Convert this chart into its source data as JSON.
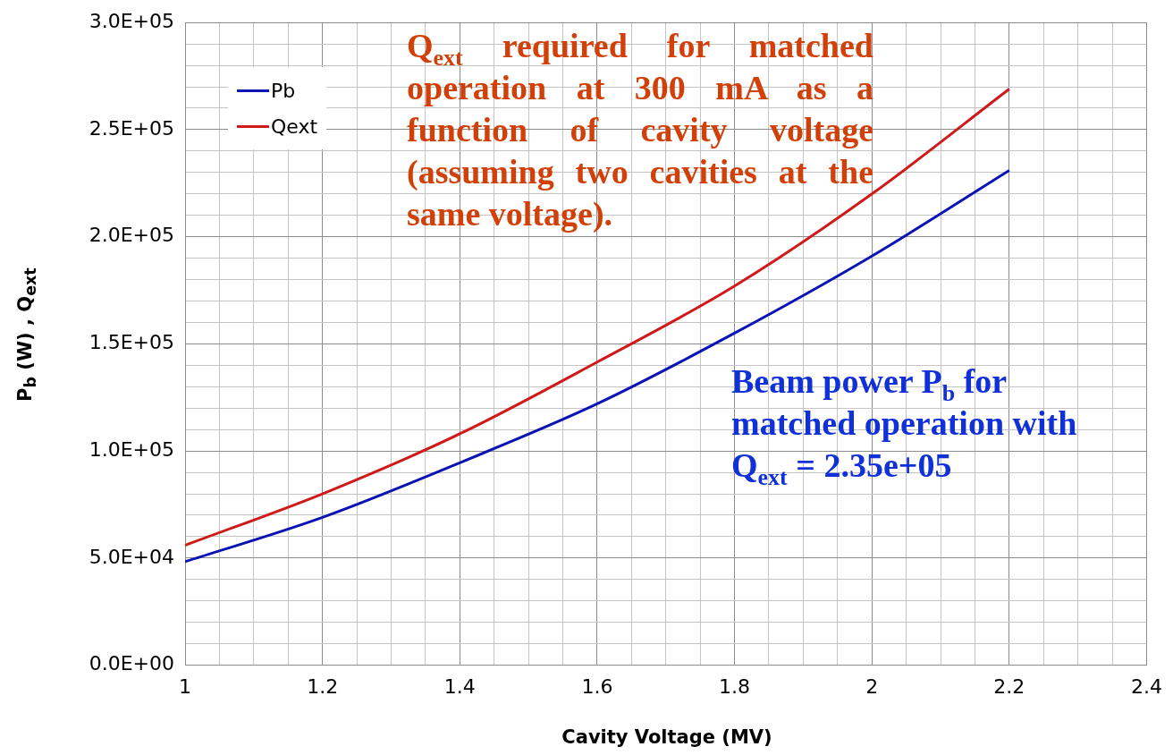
{
  "chart_data": {
    "type": "line",
    "xlabel": "Cavity Voltage (MV)",
    "ylabel": "P$_{b}$ (W) , Q$_{ext}$",
    "x": [
      1,
      1.2,
      1.4,
      1.6,
      1.8,
      2.0,
      2.2
    ],
    "series": [
      {
        "name": "Pb",
        "color": "#0a14b4",
        "values": [
          48300,
          69000,
          94500,
          122000,
          155000,
          191000,
          231000
        ]
      },
      {
        "name": "Qext",
        "color": "#d01a1a",
        "values": [
          56000,
          80000,
          108000,
          141500,
          177000,
          220000,
          269000
        ]
      }
    ],
    "xlim": [
      1,
      2.4
    ],
    "xticks": [
      1,
      {
        "value": 1.05,
        "label": null
      },
      {
        "value": 1.1,
        "label": null
      },
      {
        "value": 1.15,
        "label": null
      },
      1.2,
      {
        "value": 1.25,
        "label": null
      },
      {
        "value": 1.3,
        "label": null
      },
      {
        "value": 1.35,
        "label": null
      },
      1.4,
      {
        "value": 1.45,
        "label": null
      },
      {
        "value": 1.5,
        "label": null
      },
      {
        "value": 1.55,
        "label": null
      },
      1.6,
      {
        "value": 1.65,
        "label": null
      },
      {
        "value": 1.7,
        "label": null
      },
      {
        "value": 1.75,
        "label": null
      },
      1.8,
      {
        "value": 1.85,
        "label": null
      },
      {
        "value": 1.9,
        "label": null
      },
      {
        "value": 1.95,
        "label": null
      },
      2,
      {
        "value": 2.05,
        "label": null
      },
      {
        "value": 2.1,
        "label": null
      },
      {
        "value": 2.15,
        "label": null
      },
      2.2,
      {
        "value": 2.25,
        "label": null
      },
      {
        "value": 2.3,
        "label": null
      },
      {
        "value": 2.35,
        "label": null
      },
      2.4
    ],
    "ylim": [
      0,
      300000
    ],
    "yticks": [
      {
        "value": 0,
        "label": "0.0E+00"
      },
      {
        "value": 10000,
        "label": null
      },
      {
        "value": 20000,
        "label": null
      },
      {
        "value": 30000,
        "label": null
      },
      {
        "value": 40000,
        "label": null
      },
      {
        "value": 50000,
        "label": "5.0E+04"
      },
      {
        "value": 60000,
        "label": null
      },
      {
        "value": 70000,
        "label": null
      },
      {
        "value": 80000,
        "label": null
      },
      {
        "value": 90000,
        "label": null
      },
      {
        "value": 100000,
        "label": "1.0E+05"
      },
      {
        "value": 110000,
        "label": null
      },
      {
        "value": 120000,
        "label": null
      },
      {
        "value": 130000,
        "label": null
      },
      {
        "value": 140000,
        "label": null
      },
      {
        "value": 150000,
        "label": "1.5E+05"
      },
      {
        "value": 160000,
        "label": null
      },
      {
        "value": 170000,
        "label": null
      },
      {
        "value": 180000,
        "label": null
      },
      {
        "value": 190000,
        "label": null
      },
      {
        "value": 200000,
        "label": "2.0E+05"
      },
      {
        "value": 210000,
        "label": null
      },
      {
        "value": 220000,
        "label": null
      },
      {
        "value": 230000,
        "label": null
      },
      {
        "value": 240000,
        "label": null
      },
      {
        "value": 250000,
        "label": "2.5E+05"
      },
      {
        "value": 260000,
        "label": null
      },
      {
        "value": 270000,
        "label": null
      },
      {
        "value": 280000,
        "label": null
      },
      {
        "value": 290000,
        "label": null
      },
      {
        "value": 300000,
        "label": "3.0E+05"
      }
    ],
    "grid": true,
    "legend": "top left",
    "marker": "none",
    "line_style": "solid",
    "annotations": [
      "Q$_{ext}$ required for matched operation at 300 mA as a function of cavity voltage (assuming two cavities at the same voltage).",
      "Beam power P$_{b}$ for matched operation with Q$_{ext}$ = 2.35e+05"
    ]
  }
}
